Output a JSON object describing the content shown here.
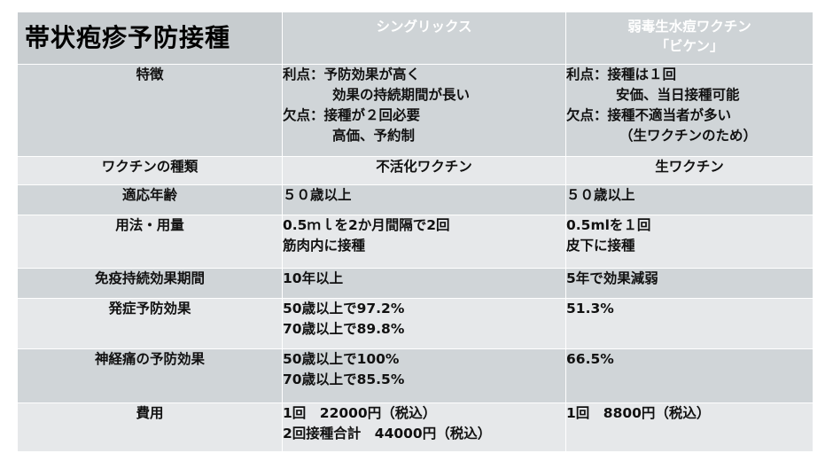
{
  "title": "帯状疱疹予防接種",
  "columns": {
    "shingrix": "シングリックス",
    "live_line1": "弱毒生水痘ワクチン",
    "live_line2": "「ビケン」"
  },
  "rows": {
    "features": {
      "label": "特徴",
      "shingrix": [
        "利点：予防効果が高く",
        "効果の持続期間が長い",
        "欠点：接種が２回必要",
        "高価、予約制"
      ],
      "live": [
        "利点：接種は１回",
        "安価、当日接種可能",
        "欠点：接種不適当者が多い",
        "（生ワクチンのため）"
      ]
    },
    "vaccine_type": {
      "label": "ワクチンの種類",
      "shingrix": "不活化ワクチン",
      "live": "生ワクチン"
    },
    "age": {
      "label": "適応年齢",
      "shingrix": "５０歳以上",
      "live": "５０歳以上"
    },
    "usage": {
      "label": "用法・用量",
      "shingrix": [
        "0.5ｍｌを2か月間隔で2回",
        "筋肉内に接種"
      ],
      "live": [
        "0.5mlを１回",
        "皮下に接種"
      ]
    },
    "duration": {
      "label": "免疫持続効果期間",
      "shingrix": "10年以上",
      "live": "5年で効果減弱"
    },
    "onset": {
      "label": "発症予防効果",
      "shingrix": [
        "50歳以上で97.2%",
        "70歳以上で89.8%"
      ],
      "live": "51.3%"
    },
    "neuralgia": {
      "label": "神経痛の予防効果",
      "shingrix": [
        "50歳以上で100%",
        "70歳以上で85.5%"
      ],
      "live": "66.5%"
    },
    "cost": {
      "label": "費用",
      "shingrix": [
        "1回　22000円（税込）",
        "2回接種合計　44000円（税込）"
      ],
      "live": "1回　8800円（税込）"
    }
  }
}
